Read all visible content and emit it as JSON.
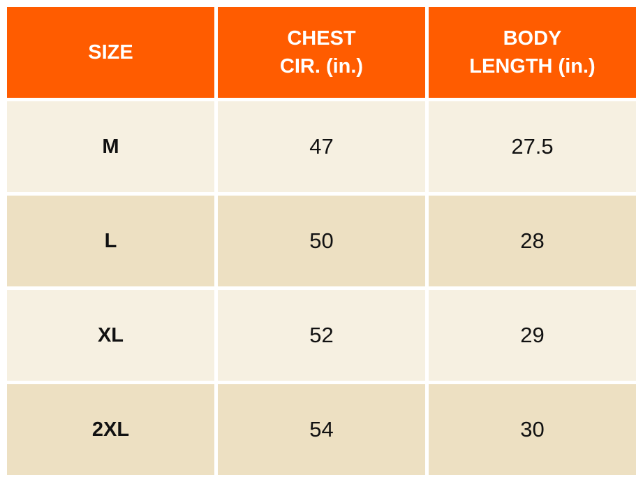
{
  "table": {
    "headers": [
      "SIZE",
      [
        "CHEST",
        "CIR. (in.)"
      ],
      [
        "BODY",
        "LENGTH (in.)"
      ]
    ],
    "rows": [
      [
        "M",
        "47",
        "27.5"
      ],
      [
        "L",
        "50",
        "28"
      ],
      [
        "XL",
        "52",
        "29"
      ],
      [
        "2XL",
        "54",
        "30"
      ]
    ]
  },
  "colors": {
    "header": "#FF5C00",
    "row_light": "#F6F0E1",
    "row_dark": "#EDE0C2"
  }
}
